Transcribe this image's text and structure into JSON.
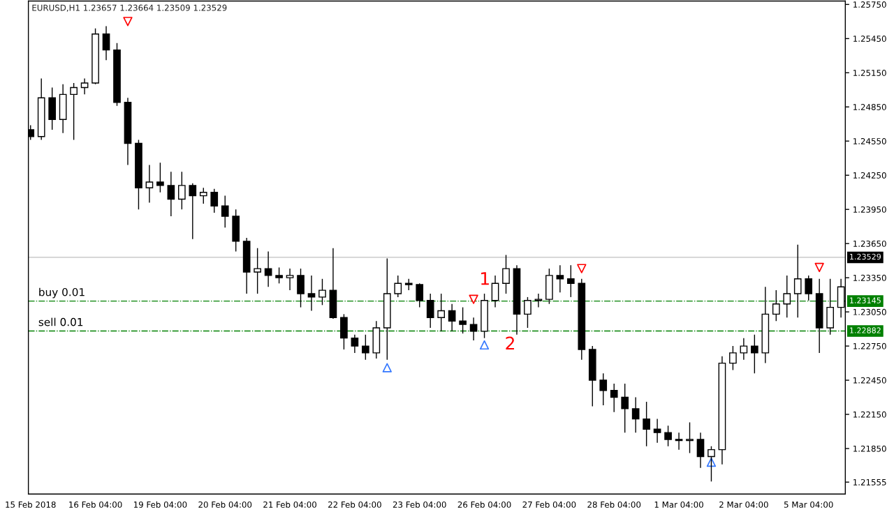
{
  "chart_data": {
    "type": "candlestick",
    "title": "EURUSD,H1 1.23657 1.23664 1.23509 1.23529",
    "categories": [
      "15 Feb 2018",
      null,
      null,
      null,
      null,
      null,
      "16 Feb 04:00",
      null,
      null,
      null,
      null,
      null,
      "19 Feb 04:00",
      null,
      null,
      null,
      null,
      null,
      "20 Feb 04:00",
      null,
      null,
      null,
      null,
      null,
      "21 Feb 04:00",
      null,
      null,
      null,
      null,
      null,
      "22 Feb 04:00",
      null,
      null,
      null,
      null,
      null,
      "23 Feb 04:00",
      null,
      null,
      null,
      null,
      null,
      "26 Feb 04:00",
      null,
      null,
      null,
      null,
      null,
      "27 Feb 04:00",
      null,
      null,
      null,
      null,
      null,
      "28 Feb 04:00",
      null,
      null,
      null,
      null,
      null,
      "1 Mar 04:00",
      null,
      null,
      null,
      null,
      null,
      "2 Mar 04:00",
      null,
      null,
      null,
      null,
      null,
      "5 Mar 04:00",
      null,
      null,
      null
    ],
    "ohlc": [
      [
        1.2465,
        1.2469,
        1.2456,
        1.2459
      ],
      [
        1.2459,
        1.251,
        1.2456,
        1.2493
      ],
      [
        1.2493,
        1.2502,
        1.2465,
        1.2474
      ],
      [
        1.2474,
        1.2505,
        1.2462,
        1.2496
      ],
      [
        1.2496,
        1.2506,
        1.2456,
        1.2502
      ],
      [
        1.2502,
        1.251,
        1.2496,
        1.2506
      ],
      [
        1.2506,
        1.2554,
        1.2505,
        1.2549
      ],
      [
        1.2549,
        1.2556,
        1.2526,
        1.2535
      ],
      [
        1.2535,
        1.2541,
        1.2486,
        1.2489
      ],
      [
        1.2489,
        1.2493,
        1.2434,
        1.2453
      ],
      [
        1.2453,
        1.2456,
        1.2395,
        1.2414
      ],
      [
        1.2414,
        1.2434,
        1.2401,
        1.2419
      ],
      [
        1.2419,
        1.2436,
        1.241,
        1.2416
      ],
      [
        1.2416,
        1.2428,
        1.2389,
        1.2404
      ],
      [
        1.2404,
        1.2428,
        1.2395,
        1.2416
      ],
      [
        1.2416,
        1.2418,
        1.2369,
        1.2407
      ],
      [
        1.2407,
        1.2414,
        1.24,
        1.241
      ],
      [
        1.241,
        1.2413,
        1.2392,
        1.2398
      ],
      [
        1.2398,
        1.2407,
        1.2379,
        1.2389
      ],
      [
        1.2389,
        1.2395,
        1.2358,
        1.2367
      ],
      [
        1.2367,
        1.237,
        1.2321,
        1.234
      ],
      [
        1.234,
        1.2361,
        1.2321,
        1.2343
      ],
      [
        1.2343,
        1.2358,
        1.2327,
        1.2337
      ],
      [
        1.2337,
        1.2344,
        1.233,
        1.2335
      ],
      [
        1.2335,
        1.2343,
        1.2324,
        1.2337
      ],
      [
        1.2337,
        1.2343,
        1.2309,
        1.2321
      ],
      [
        1.2321,
        1.2337,
        1.2306,
        1.2318
      ],
      [
        1.2318,
        1.2334,
        1.2311,
        1.2324
      ],
      [
        1.2324,
        1.2361,
        1.2299,
        1.23
      ],
      [
        1.23,
        1.2303,
        1.2272,
        1.2282
      ],
      [
        1.2282,
        1.2285,
        1.2269,
        1.2275
      ],
      [
        1.2275,
        1.2285,
        1.2263,
        1.2269
      ],
      [
        1.2269,
        1.2297,
        1.2264,
        1.2291
      ],
      [
        1.2291,
        1.2352,
        1.2263,
        1.2321
      ],
      [
        1.2321,
        1.2337,
        1.2318,
        1.233
      ],
      [
        1.233,
        1.2334,
        1.2324,
        1.2329
      ],
      [
        1.2329,
        1.233,
        1.2309,
        1.2315
      ],
      [
        1.2315,
        1.2321,
        1.2291,
        1.23
      ],
      [
        1.23,
        1.2321,
        1.2288,
        1.2306
      ],
      [
        1.2306,
        1.2312,
        1.2288,
        1.2297
      ],
      [
        1.2297,
        1.2309,
        1.2286,
        1.2294
      ],
      [
        1.2294,
        1.23,
        1.228,
        1.2288
      ],
      [
        1.2288,
        1.2321,
        1.2282,
        1.2315
      ],
      [
        1.2315,
        1.2337,
        1.2309,
        1.233
      ],
      [
        1.233,
        1.2355,
        1.2321,
        1.2343
      ],
      [
        1.2343,
        1.2346,
        1.2285,
        1.2303
      ],
      [
        1.2303,
        1.2318,
        1.2291,
        1.2315
      ],
      [
        1.2315,
        1.2321,
        1.2309,
        1.2316
      ],
      [
        1.2316,
        1.2343,
        1.2312,
        1.2337
      ],
      [
        1.2337,
        1.2346,
        1.2322,
        1.2334
      ],
      [
        1.2334,
        1.2346,
        1.2318,
        1.233
      ],
      [
        1.233,
        1.2334,
        1.2263,
        1.2272
      ],
      [
        1.2272,
        1.2275,
        1.2222,
        1.2245
      ],
      [
        1.2245,
        1.2251,
        1.2223,
        1.2236
      ],
      [
        1.2236,
        1.2242,
        1.2217,
        1.223
      ],
      [
        1.223,
        1.2242,
        1.2199,
        1.222
      ],
      [
        1.222,
        1.223,
        1.2199,
        1.2211
      ],
      [
        1.2211,
        1.2226,
        1.2187,
        1.2202
      ],
      [
        1.2202,
        1.2211,
        1.219,
        1.2199
      ],
      [
        1.2199,
        1.2205,
        1.2187,
        1.2193
      ],
      [
        1.2193,
        1.2199,
        1.2184,
        1.2192
      ],
      [
        1.2192,
        1.2208,
        1.2181,
        1.2193
      ],
      [
        1.2193,
        1.2199,
        1.2168,
        1.2178
      ],
      [
        1.2178,
        1.2187,
        1.2156,
        1.2184
      ],
      [
        1.2184,
        1.2266,
        1.2171,
        1.226
      ],
      [
        1.226,
        1.2275,
        1.2254,
        1.2269
      ],
      [
        1.2269,
        1.2282,
        1.2263,
        1.2275
      ],
      [
        1.2275,
        1.2285,
        1.2251,
        1.2269
      ],
      [
        1.2269,
        1.2327,
        1.226,
        1.2303
      ],
      [
        1.2303,
        1.2324,
        1.2297,
        1.2312
      ],
      [
        1.2312,
        1.2337,
        1.23,
        1.2321
      ],
      [
        1.2321,
        1.2364,
        1.23,
        1.2334
      ],
      [
        1.2334,
        1.2337,
        1.2315,
        1.2321
      ],
      [
        1.2321,
        1.2334,
        1.2269,
        1.2291
      ],
      [
        1.2291,
        1.2334,
        1.2285,
        1.2309
      ],
      [
        1.2309,
        1.2334,
        1.23,
        1.2327
      ]
    ],
    "series": [
      {
        "type": "scatter",
        "color": "#ff0000",
        "marker": "triangle_down",
        "values": [
          null,
          null,
          null,
          null,
          null,
          null,
          null,
          null,
          null,
          1.256,
          null,
          null,
          null,
          null,
          null,
          null,
          null,
          null,
          null,
          null,
          null,
          null,
          null,
          null,
          null,
          null,
          null,
          null,
          null,
          null,
          null,
          null,
          null,
          null,
          null,
          null,
          null,
          null,
          null,
          null,
          null,
          1.2316,
          null,
          null,
          null,
          null,
          null,
          null,
          null,
          null,
          null,
          1.2343,
          null,
          null,
          null,
          null,
          null,
          null,
          null,
          null,
          null,
          null,
          null,
          null,
          null,
          null,
          null,
          null,
          null,
          null,
          null,
          null,
          null,
          1.2344,
          null,
          null
        ]
      },
      {
        "type": "scatter",
        "color": "#3377ff",
        "marker": "triangle",
        "values": [
          null,
          null,
          null,
          null,
          null,
          null,
          null,
          null,
          null,
          null,
          null,
          null,
          null,
          null,
          null,
          null,
          null,
          null,
          null,
          null,
          null,
          null,
          null,
          null,
          null,
          null,
          null,
          null,
          null,
          null,
          null,
          null,
          null,
          1.2256,
          null,
          null,
          null,
          null,
          null,
          null,
          null,
          null,
          1.2276,
          null,
          null,
          null,
          null,
          null,
          null,
          null,
          null,
          null,
          null,
          null,
          null,
          null,
          null,
          null,
          null,
          null,
          null,
          null,
          null,
          1.2173,
          null,
          null,
          null,
          null,
          null,
          null,
          null,
          null,
          null,
          null,
          null,
          null
        ]
      }
    ],
    "ylim": [
      1.2145,
      1.2578
    ],
    "yticks": [
      {
        "value": 1.2575,
        "label": "1.25750"
      },
      {
        "value": 1.2545,
        "label": "1.25450"
      },
      {
        "value": 1.2515,
        "label": "1.25150"
      },
      {
        "value": 1.2485,
        "label": "1.24850"
      },
      {
        "value": 1.2455,
        "label": "1.24550"
      },
      {
        "value": 1.2425,
        "label": "1.24250"
      },
      {
        "value": 1.2395,
        "label": "1.23950"
      },
      {
        "value": 1.2365,
        "label": "1.23650"
      },
      {
        "value": 1.2335,
        "label": "1.23350"
      },
      {
        "value": 1.2305,
        "label": "1.23050"
      },
      {
        "value": 1.2275,
        "label": "1.22750"
      },
      {
        "value": 1.2245,
        "label": "1.22450"
      },
      {
        "value": 1.2215,
        "label": "1.22150"
      },
      {
        "value": 1.2185,
        "label": "1.21850"
      },
      {
        "value": 1.21555,
        "label": "1.21555"
      }
    ],
    "ref_lines": [
      {
        "axis": "y",
        "value": 1.23529,
        "label": "1.23529",
        "color": "#c0c0c0",
        "line_style": "solid"
      },
      {
        "axis": "y",
        "value": 1.23145,
        "label": "1.23145",
        "color": "#008000",
        "line_style": "dashdot"
      },
      {
        "axis": "y",
        "value": 1.22882,
        "label": "1.22882",
        "color": "#008000",
        "line_style": "dashdot"
      }
    ],
    "annotations": [
      {
        "text": "buy 0.01",
        "x": "15 Feb 2018",
        "y": 1.23145
      },
      {
        "text": "sell 0.01",
        "x": "15 Feb 2018",
        "y": 1.22882
      },
      "1",
      "2"
    ],
    "grid": false
  }
}
